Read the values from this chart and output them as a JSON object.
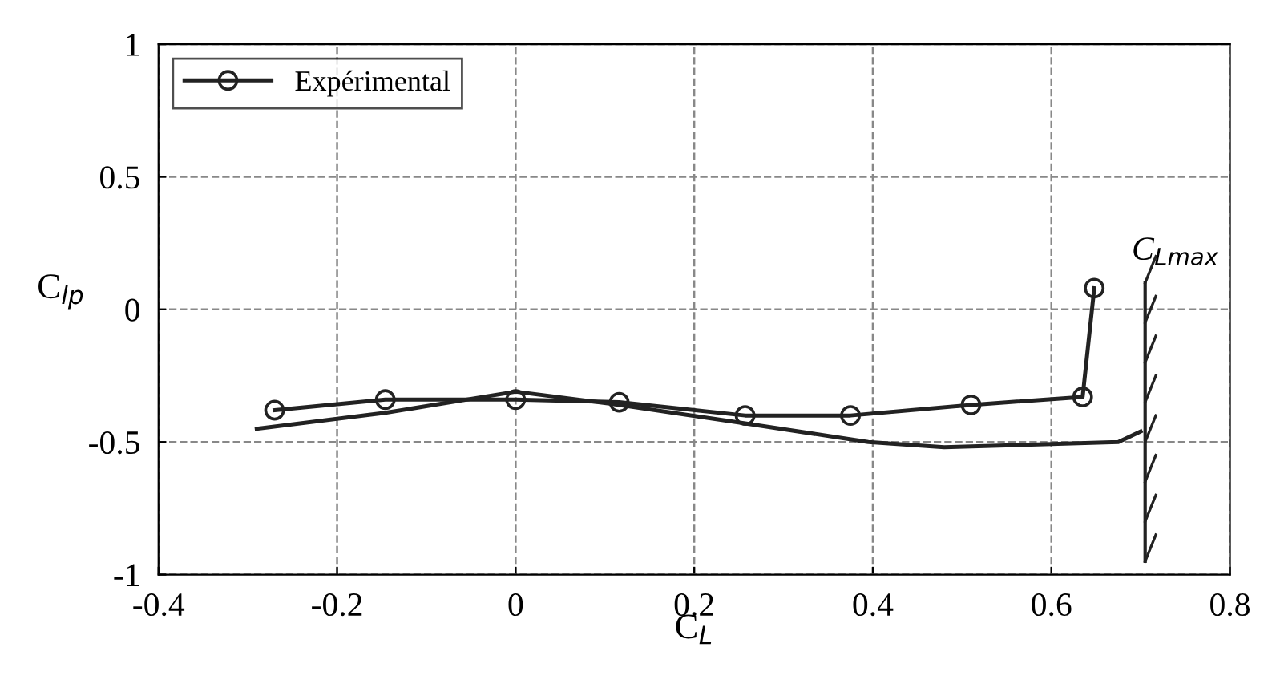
{
  "chart_data": {
    "type": "line",
    "xlabel": "C$_{L}$",
    "ylabel": "C$_{lp}$",
    "xlim": [
      -0.4,
      0.8
    ],
    "xticks": [
      -0.4,
      -0.2,
      0,
      0.2,
      0.4,
      0.6,
      0.8
    ],
    "ylim": [
      -1,
      1
    ],
    "yticks": [
      -1,
      -0.5,
      0,
      0.5,
      1
    ],
    "grid": true,
    "legend": "top left",
    "series": [
      {
        "name": "Expérimental",
        "color": "#222222",
        "marker": "circle",
        "line_style": "solid",
        "x": [
          -0.27,
          -0.146,
          0,
          0.116,
          0.257,
          0.375,
          0.51,
          0.635,
          0.648
        ],
        "values": [
          -0.38,
          -0.34,
          -0.34,
          -0.35,
          -0.4,
          -0.4,
          -0.36,
          -0.33,
          0.08
        ]
      },
      {
        "color": "#222222",
        "marker": "none",
        "line_style": "solid",
        "x": [
          -0.29,
          -0.146,
          0,
          0.116,
          0.257,
          0.395,
          0.48,
          0.675,
          0.7
        ],
        "values": [
          -0.45,
          -0.39,
          -0.31,
          -0.36,
          -0.43,
          -0.5,
          -0.52,
          -0.5,
          -0.46
        ]
      }
    ],
    "ref_lines": [
      {
        "axis": "x",
        "value": 0.705,
        "label": "C$_{Lmax}$",
        "color": "#222222"
      }
    ]
  }
}
